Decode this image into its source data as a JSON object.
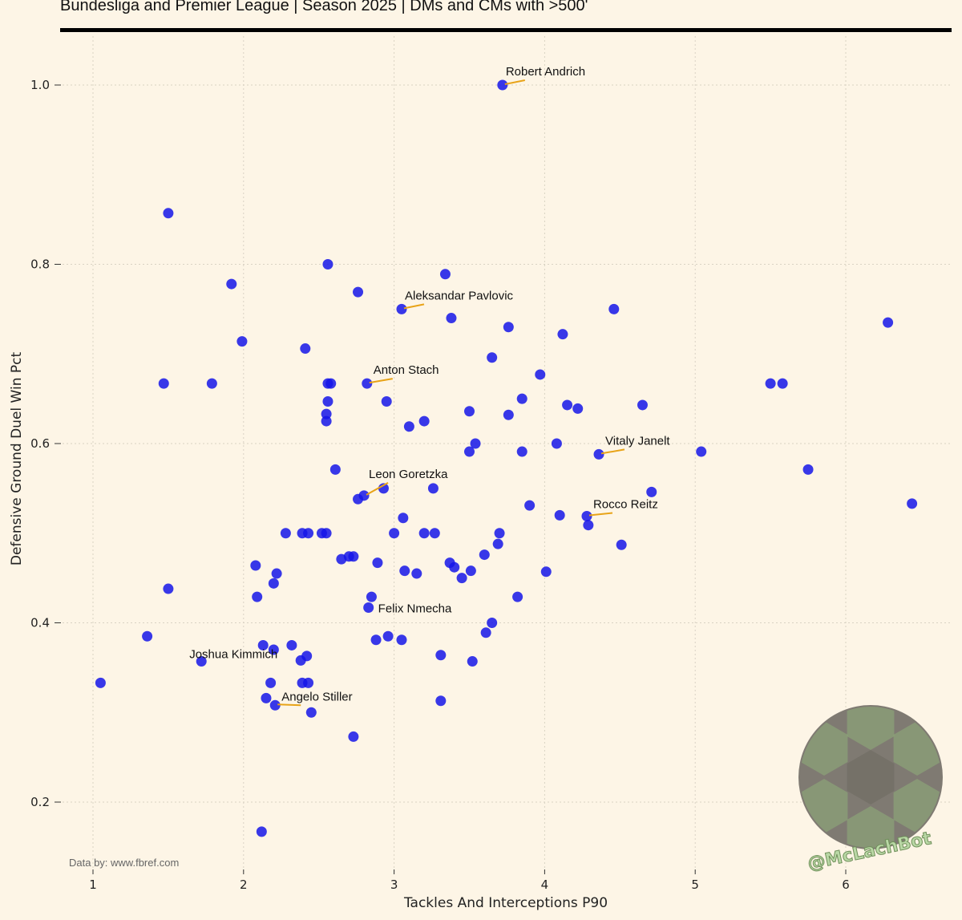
{
  "header": {
    "subtitle": "Bundesliga and Premier League | Season 2025 | DMs and CMs with >500'"
  },
  "footer": {
    "credit": "Data by: www.fbref.com",
    "handle": "@McLachBot"
  },
  "colors": {
    "background": "#fdf5e6",
    "point": "#1515e8",
    "annotation_line": "#e8a317",
    "grid": "#d9d2c3",
    "badge": "#7f7a72"
  },
  "chart_data": {
    "type": "scatter",
    "xlabel": "Tackles And Interceptions P90",
    "ylabel": "Defensive Ground Duel Win Pct",
    "xlim": [
      0.8,
      6.7
    ],
    "ylim": [
      0.12,
      1.05
    ],
    "xticks": [
      1,
      2,
      3,
      4,
      5,
      6
    ],
    "yticks": [
      0.2,
      0.4,
      0.6,
      0.8,
      1.0
    ],
    "ytick_labels": [
      "0.2",
      "0.4",
      "0.6",
      "0.8",
      "1.0"
    ],
    "grid": true,
    "points": [
      [
        1.05,
        0.333
      ],
      [
        1.36,
        0.385
      ],
      [
        1.47,
        0.667
      ],
      [
        1.5,
        0.857
      ],
      [
        1.5,
        0.438
      ],
      [
        1.72,
        0.357
      ],
      [
        1.79,
        0.667
      ],
      [
        1.92,
        0.778
      ],
      [
        1.99,
        0.714
      ],
      [
        2.08,
        0.464
      ],
      [
        2.09,
        0.429
      ],
      [
        2.12,
        0.167
      ],
      [
        2.13,
        0.375
      ],
      [
        2.15,
        0.316
      ],
      [
        2.18,
        0.333
      ],
      [
        2.2,
        0.37
      ],
      [
        2.2,
        0.444
      ],
      [
        2.21,
        0.308
      ],
      [
        2.22,
        0.455
      ],
      [
        2.28,
        0.5
      ],
      [
        2.32,
        0.375
      ],
      [
        2.38,
        0.358
      ],
      [
        2.39,
        0.333
      ],
      [
        2.39,
        0.5
      ],
      [
        2.41,
        0.706
      ],
      [
        2.42,
        0.363
      ],
      [
        2.43,
        0.333
      ],
      [
        2.43,
        0.5
      ],
      [
        2.45,
        0.3
      ],
      [
        2.52,
        0.5
      ],
      [
        2.55,
        0.5
      ],
      [
        2.55,
        0.625
      ],
      [
        2.55,
        0.633
      ],
      [
        2.56,
        0.647
      ],
      [
        2.56,
        0.8
      ],
      [
        2.56,
        0.667
      ],
      [
        2.58,
        0.667
      ],
      [
        2.61,
        0.571
      ],
      [
        2.65,
        0.471
      ],
      [
        2.7,
        0.474
      ],
      [
        2.73,
        0.474
      ],
      [
        2.73,
        0.273
      ],
      [
        2.76,
        0.769
      ],
      [
        2.76,
        0.538
      ],
      [
        2.8,
        0.542
      ],
      [
        2.82,
        0.667
      ],
      [
        2.83,
        0.417
      ],
      [
        2.85,
        0.429
      ],
      [
        2.88,
        0.381
      ],
      [
        2.89,
        0.467
      ],
      [
        2.93,
        0.55
      ],
      [
        2.95,
        0.647
      ],
      [
        2.96,
        0.385
      ],
      [
        3.0,
        0.5
      ],
      [
        3.05,
        0.75
      ],
      [
        3.05,
        0.381
      ],
      [
        3.06,
        0.517
      ],
      [
        3.07,
        0.458
      ],
      [
        3.1,
        0.619
      ],
      [
        3.15,
        0.455
      ],
      [
        3.2,
        0.625
      ],
      [
        3.2,
        0.5
      ],
      [
        3.26,
        0.55
      ],
      [
        3.27,
        0.5
      ],
      [
        3.31,
        0.364
      ],
      [
        3.31,
        0.313
      ],
      [
        3.34,
        0.789
      ],
      [
        3.37,
        0.467
      ],
      [
        3.38,
        0.74
      ],
      [
        3.4,
        0.462
      ],
      [
        3.45,
        0.45
      ],
      [
        3.5,
        0.636
      ],
      [
        3.5,
        0.591
      ],
      [
        3.51,
        0.458
      ],
      [
        3.52,
        0.357
      ],
      [
        3.54,
        0.6
      ],
      [
        3.6,
        0.476
      ],
      [
        3.61,
        0.389
      ],
      [
        3.65,
        0.696
      ],
      [
        3.65,
        0.4
      ],
      [
        3.69,
        0.488
      ],
      [
        3.7,
        0.5
      ],
      [
        3.72,
        1.0
      ],
      [
        3.76,
        0.73
      ],
      [
        3.76,
        0.632
      ],
      [
        3.82,
        0.429
      ],
      [
        3.85,
        0.65
      ],
      [
        3.85,
        0.591
      ],
      [
        3.9,
        0.531
      ],
      [
        3.97,
        0.677
      ],
      [
        4.01,
        0.457
      ],
      [
        4.08,
        0.6
      ],
      [
        4.1,
        0.52
      ],
      [
        4.12,
        0.722
      ],
      [
        4.15,
        0.643
      ],
      [
        4.22,
        0.639
      ],
      [
        4.28,
        0.519
      ],
      [
        4.29,
        0.509
      ],
      [
        4.36,
        0.588
      ],
      [
        4.46,
        0.75
      ],
      [
        4.51,
        0.487
      ],
      [
        4.65,
        0.643
      ],
      [
        4.71,
        0.546
      ],
      [
        5.04,
        0.591
      ],
      [
        5.5,
        0.667
      ],
      [
        5.58,
        0.667
      ],
      [
        5.75,
        0.571
      ],
      [
        6.28,
        0.735
      ],
      [
        6.44,
        0.533
      ]
    ],
    "annotations": [
      {
        "label": "Robert Andrich",
        "x": 3.72,
        "y": 1.0
      },
      {
        "label": "Aleksandar Pavlovic",
        "x": 3.05,
        "y": 0.75
      },
      {
        "label": "Anton Stach",
        "x": 2.82,
        "y": 0.667
      },
      {
        "label": "Vitaly Janelt",
        "x": 4.36,
        "y": 0.588
      },
      {
        "label": "Leon Goretzka",
        "x": 2.8,
        "y": 0.542
      },
      {
        "label": "Rocco Reitz",
        "x": 4.28,
        "y": 0.519
      },
      {
        "label": "Felix Nmecha",
        "x": 2.83,
        "y": 0.417
      },
      {
        "label": "Joshua Kimmich",
        "x": 1.72,
        "y": 0.357
      },
      {
        "label": "Angelo Stiller",
        "x": 2.21,
        "y": 0.308
      }
    ]
  }
}
